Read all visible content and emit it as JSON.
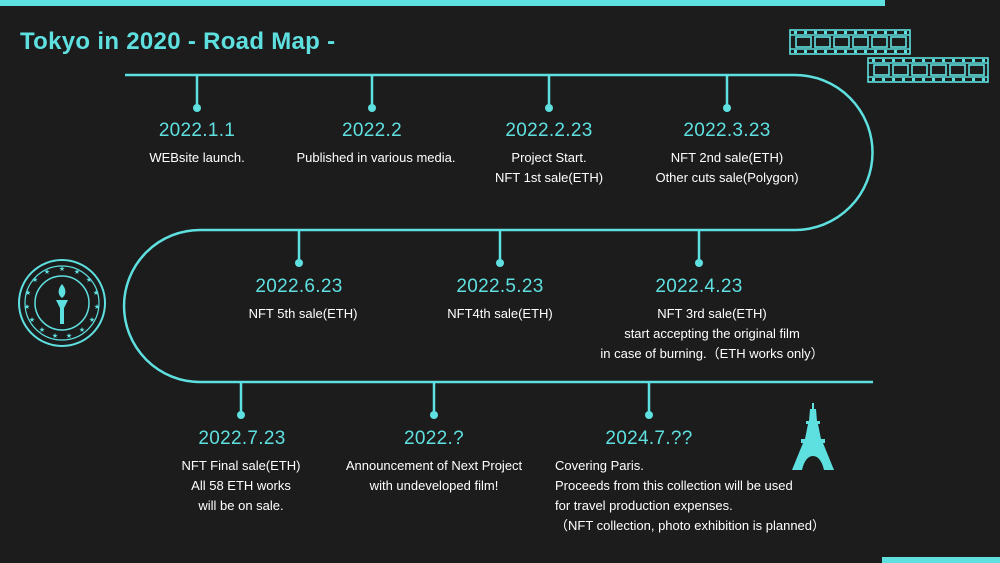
{
  "title": "Tokyo in 2020 - Road Map -",
  "colors": {
    "accent": "#5fe0e0",
    "background": "#1c1c1c",
    "text": "#ffffff"
  },
  "icons": [
    "film-strip-icon",
    "torch-emblem-icon",
    "eiffel-tower-icon"
  ],
  "milestones": [
    {
      "date": "2022.1.1",
      "lines": [
        "WEBsite launch."
      ]
    },
    {
      "date": "2022.2",
      "lines": [
        "Published in various media."
      ]
    },
    {
      "date": "2022.2.23",
      "lines": [
        "Project Start.",
        "NFT 1st sale(ETH)"
      ]
    },
    {
      "date": "2022.3.23",
      "lines": [
        "NFT 2nd sale(ETH)",
        "Other cuts sale(Polygon)"
      ]
    },
    {
      "date": "2022.4.23",
      "lines": [
        "NFT 3rd sale(ETH)",
        "start accepting the original film",
        "in case of burning.（ETH works only）"
      ]
    },
    {
      "date": "2022.5.23",
      "lines": [
        "NFT4th sale(ETH)"
      ]
    },
    {
      "date": "2022.6.23",
      "lines": [
        "NFT 5th sale(ETH)"
      ]
    },
    {
      "date": "2022.7.23",
      "lines": [
        "NFT Final sale(ETH)",
        "All 58 ETH works",
        "will be on sale."
      ]
    },
    {
      "date": "2022.?",
      "lines": [
        "Announcement of Next Project",
        "with undeveloped film!"
      ]
    },
    {
      "date": "2024.7.??",
      "lines": [
        "Covering Paris.",
        "Proceeds from this collection will be used",
        "for travel production expenses.",
        "（NFT collection, photo exhibition is planned）"
      ]
    }
  ]
}
